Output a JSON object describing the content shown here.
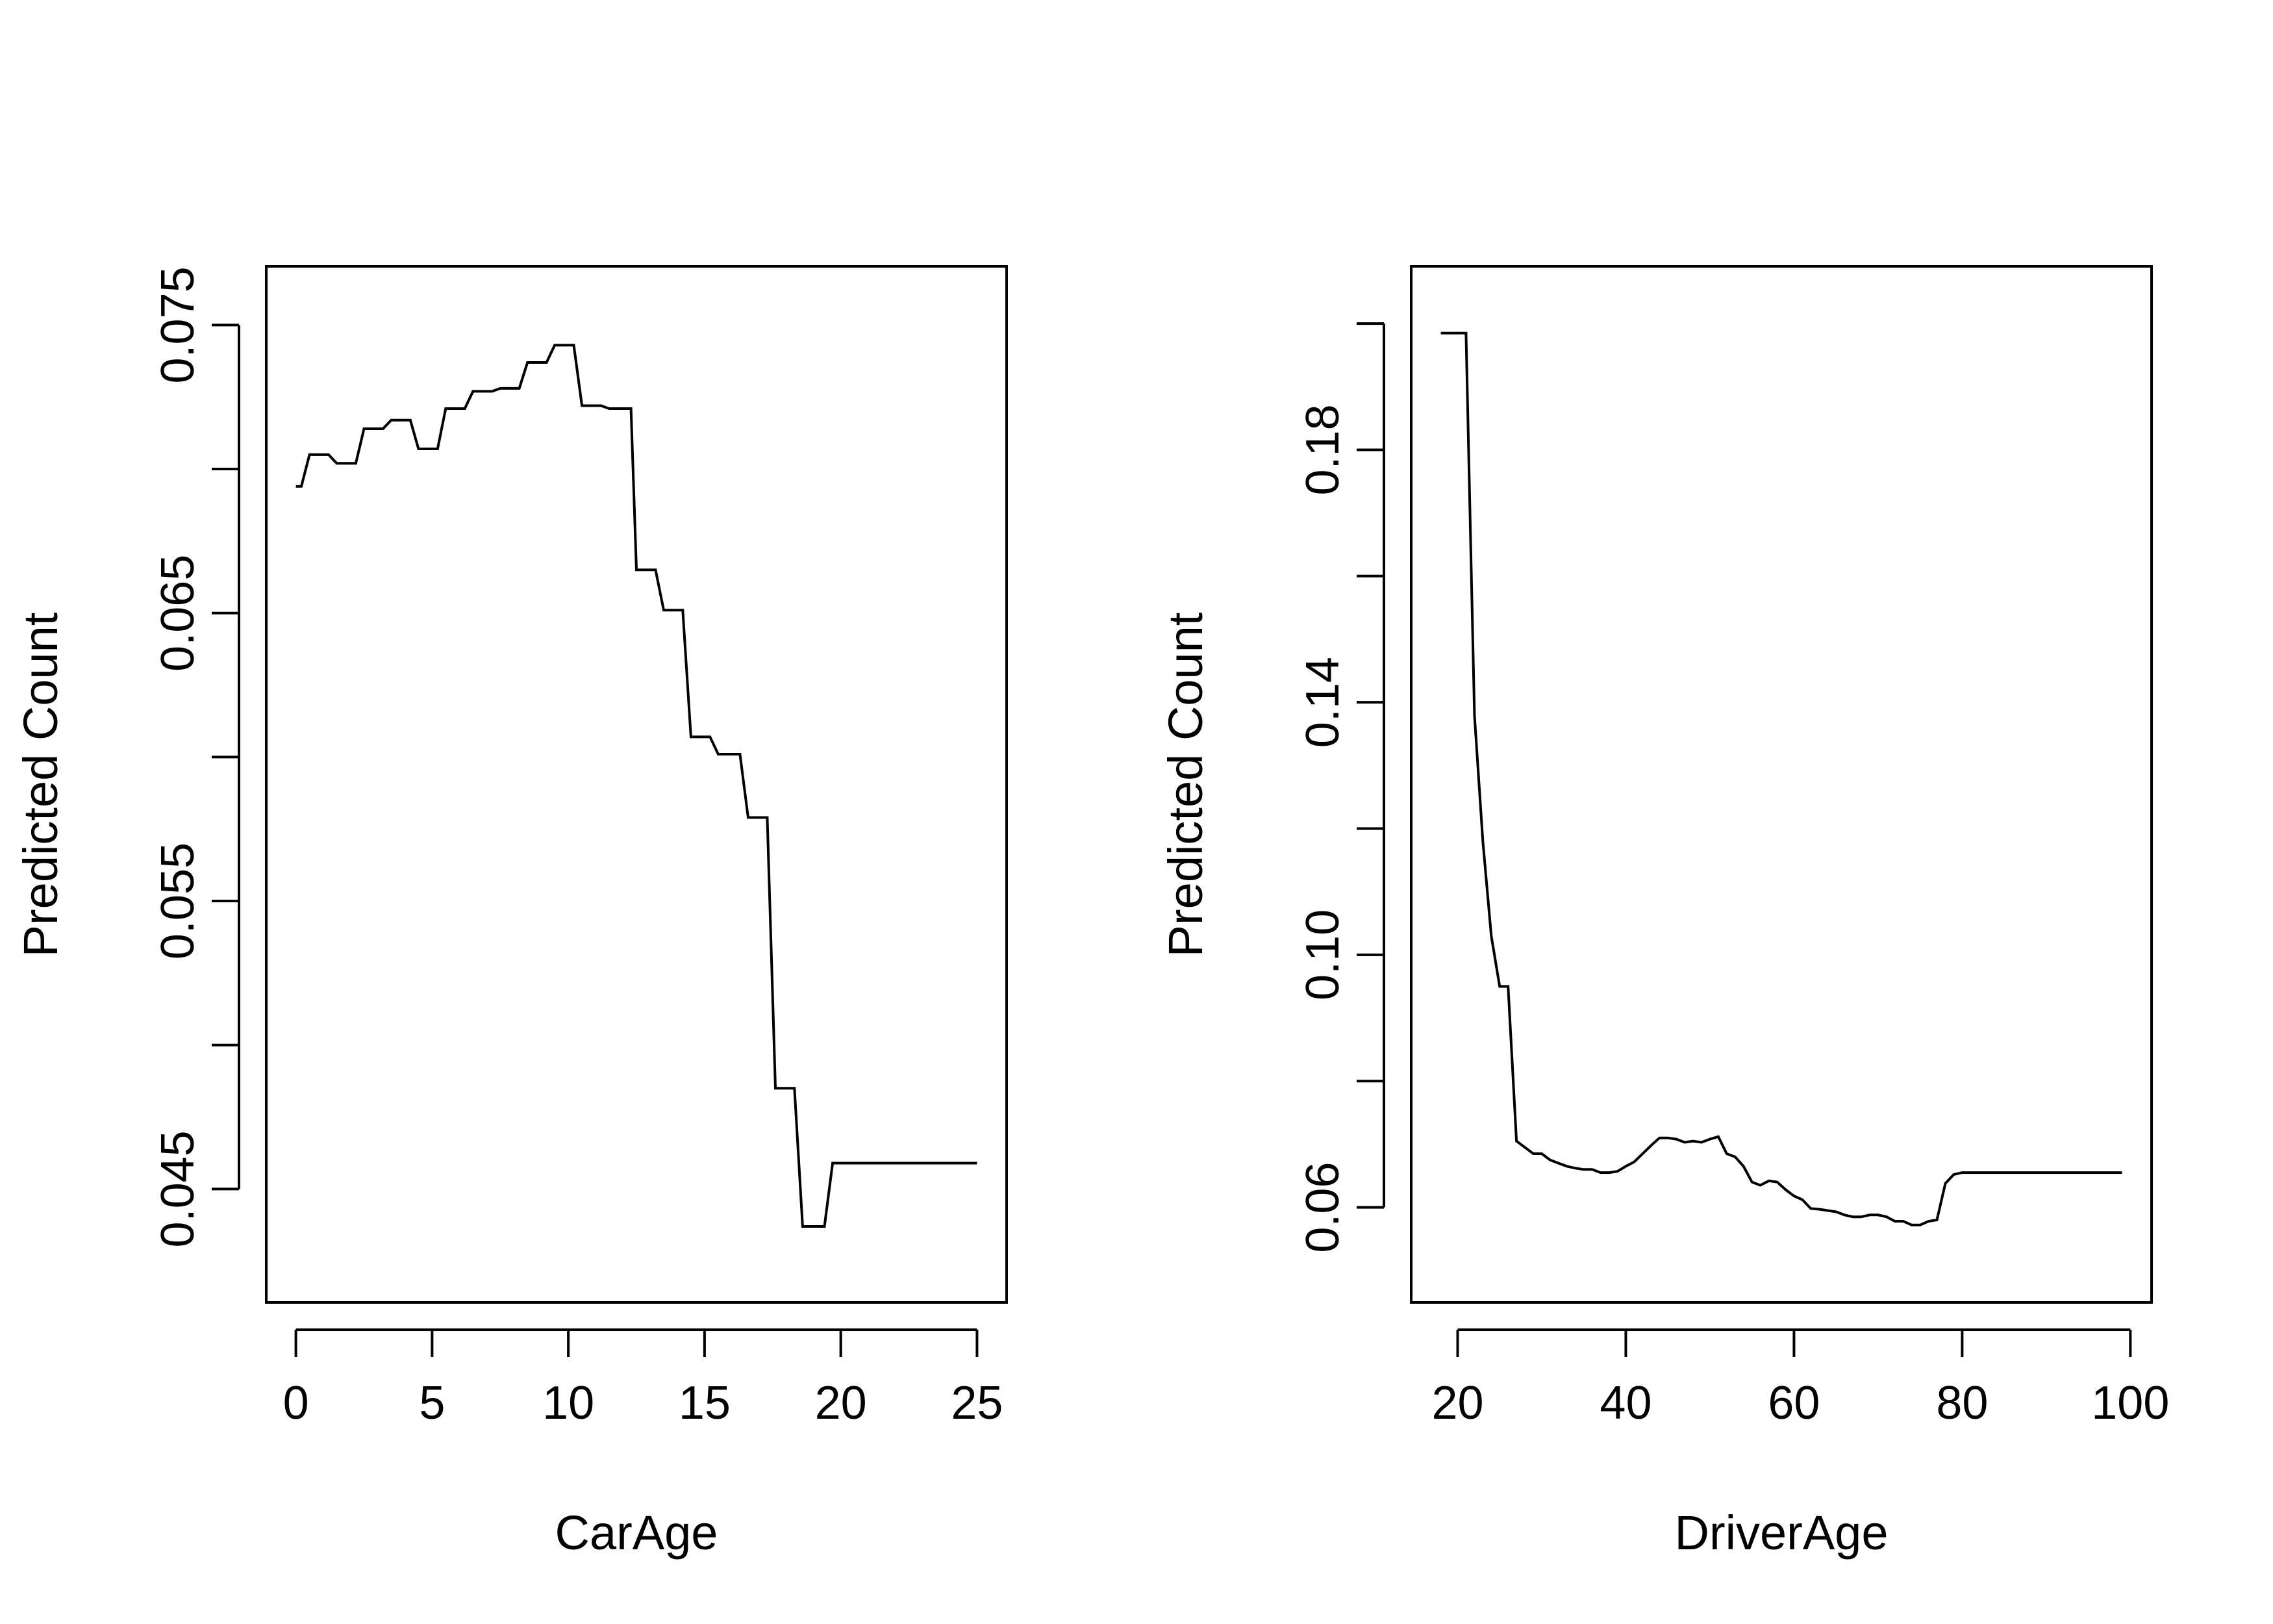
{
  "chart_data": [
    {
      "type": "line",
      "xlabel": "CarAge",
      "ylabel": "Predicted Count",
      "xlim": [
        0,
        25
      ],
      "ylim": [
        0.0425,
        0.0756
      ],
      "x_ticks": [
        0,
        5,
        10,
        15,
        20,
        25
      ],
      "x_tick_labels": [
        "0",
        "5",
        "10",
        "15",
        "20",
        "25"
      ],
      "y_ticks": [
        0.045,
        0.05,
        0.055,
        0.06,
        0.065,
        0.07,
        0.075
      ],
      "y_tick_labels": [
        "0.045",
        "",
        "0.055",
        "",
        "0.065",
        "",
        "0.075"
      ],
      "grid": false,
      "series": [
        {
          "x": [
            0,
            0.2,
            0.5,
            1.2,
            1.5,
            2.2,
            2.5,
            3.2,
            3.5,
            4.2,
            4.5,
            5.2,
            5.5,
            6.2,
            6.5,
            7.2,
            7.5,
            8.2,
            8.5,
            9.2,
            9.5,
            10.2,
            10.5,
            11.2,
            11.5,
            12.3,
            12.5,
            13.2,
            13.5,
            14.2,
            14.5,
            15.2,
            15.5,
            16.3,
            16.6,
            17.3,
            17.6,
            18.3,
            18.6,
            19.4,
            19.7,
            25
          ],
          "y": [
            0.0694,
            0.0694,
            0.0705,
            0.0705,
            0.0702,
            0.0702,
            0.0714,
            0.0714,
            0.0717,
            0.0717,
            0.0707,
            0.0707,
            0.0721,
            0.0721,
            0.0727,
            0.0727,
            0.0728,
            0.0728,
            0.0737,
            0.0737,
            0.0743,
            0.0743,
            0.0722,
            0.0722,
            0.0721,
            0.0721,
            0.0665,
            0.0665,
            0.0651,
            0.0651,
            0.0607,
            0.0607,
            0.0601,
            0.0601,
            0.0579,
            0.0579,
            0.0485,
            0.0485,
            0.0437,
            0.0437,
            0.0459,
            0.0459
          ]
        }
      ]
    },
    {
      "type": "line",
      "xlabel": "DriverAge",
      "ylabel": "Predicted Count",
      "xlim": [
        18,
        99
      ],
      "ylim": [
        0.0515,
        0.2025
      ],
      "x_ticks": [
        20,
        40,
        60,
        80,
        100
      ],
      "x_tick_labels": [
        "20",
        "40",
        "60",
        "80",
        "100"
      ],
      "y_ticks": [
        0.06,
        0.08,
        0.1,
        0.12,
        0.14,
        0.16,
        0.18,
        0.2
      ],
      "y_tick_labels": [
        "0.06",
        "",
        "0.10",
        "",
        "0.14",
        "",
        "0.18",
        ""
      ],
      "grid": false,
      "series": [
        {
          "x": [
            18,
            21,
            22,
            23,
            24,
            25,
            26,
            27,
            28,
            29,
            30,
            31,
            32,
            33,
            34,
            35,
            36,
            37,
            38,
            39,
            40,
            41,
            42,
            43,
            44,
            45,
            46,
            47,
            48,
            49,
            50,
            51,
            52,
            53,
            54,
            55,
            56,
            57,
            58,
            59,
            60,
            61,
            62,
            63,
            64,
            65,
            66,
            67,
            68,
            69,
            70,
            71,
            72,
            73,
            74,
            75,
            76,
            77,
            78,
            79,
            80,
            85,
            90,
            95,
            99
          ],
          "y": [
            0.1985,
            0.1985,
            0.138,
            0.118,
            0.103,
            0.095,
            0.095,
            0.0705,
            0.0695,
            0.0685,
            0.0685,
            0.0675,
            0.067,
            0.0665,
            0.0662,
            0.066,
            0.066,
            0.0655,
            0.0655,
            0.0657,
            0.0665,
            0.0672,
            0.0685,
            0.0698,
            0.071,
            0.071,
            0.0708,
            0.0703,
            0.0705,
            0.0703,
            0.0708,
            0.0712,
            0.0685,
            0.068,
            0.0665,
            0.064,
            0.0635,
            0.0642,
            0.064,
            0.0628,
            0.0618,
            0.0612,
            0.0598,
            0.0597,
            0.0595,
            0.0593,
            0.0588,
            0.0585,
            0.0585,
            0.0588,
            0.0588,
            0.0585,
            0.0578,
            0.0578,
            0.0572,
            0.0572,
            0.0578,
            0.058,
            0.0638,
            0.0652,
            0.0655,
            0.0655,
            0.0655,
            0.0655,
            0.0655
          ]
        }
      ]
    }
  ]
}
